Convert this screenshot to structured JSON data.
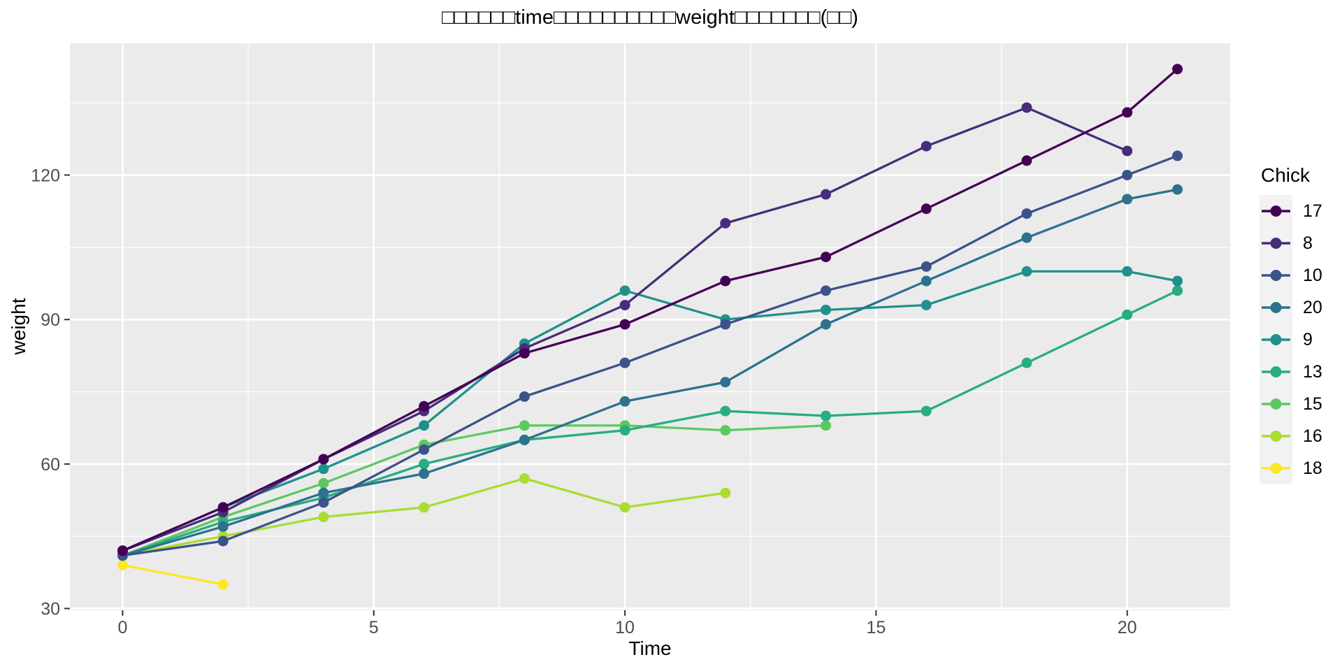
{
  "title": "□□□□□□time□□□□□□□□□□weight□□□□□□□(□□)",
  "x_axis": {
    "label": "Time"
  },
  "y_axis": {
    "label": "weight"
  },
  "legend": {
    "title": "Chick",
    "entries": [
      "17",
      "8",
      "10",
      "20",
      "9",
      "13",
      "15",
      "16",
      "18"
    ]
  },
  "style": {
    "panel_bg": "#EBEBEB",
    "grid_color": "#FFFFFF",
    "tick_color": "#333333",
    "tick_label_color": "#4D4D4D",
    "legend_key_bg": "#F2F2F2",
    "text_color": "#000000"
  },
  "chart_data": {
    "type": "line",
    "title": "□□□□□□time□□□□□□□□□□weight□□□□□□□(□□)",
    "xlabel": "Time",
    "ylabel": "weight",
    "legend_title": "Chick",
    "legend_position": "right",
    "grid": "white major and minor gridlines on gray panel",
    "x_ticks": [
      0,
      5,
      10,
      15,
      20
    ],
    "y_ticks": [
      30,
      60,
      90,
      120
    ],
    "x_minor": [
      2.5,
      7.5,
      12.5,
      17.5
    ],
    "y_minor": [
      45,
      75,
      105,
      135
    ],
    "xlim": [
      -1.05,
      22.05
    ],
    "ylim": [
      29.65,
      147.35
    ],
    "marker": "filled circle on every observation",
    "series": [
      {
        "name": "17",
        "color": "#440154",
        "x": [
          0,
          2,
          4,
          6,
          8,
          10,
          12,
          14,
          16,
          18,
          20,
          21
        ],
        "y": [
          42,
          51,
          61,
          72,
          83,
          89,
          98,
          103,
          113,
          123,
          133,
          142
        ]
      },
      {
        "name": "8",
        "color": "#472D7B",
        "x": [
          0,
          2,
          4,
          6,
          8,
          10,
          12,
          14,
          16,
          18,
          20
        ],
        "y": [
          42,
          50,
          61,
          71,
          84,
          93,
          110,
          116,
          126,
          134,
          125
        ]
      },
      {
        "name": "10",
        "color": "#3B528B",
        "x": [
          0,
          2,
          4,
          6,
          8,
          10,
          12,
          14,
          16,
          18,
          20,
          21
        ],
        "y": [
          41,
          44,
          52,
          63,
          74,
          81,
          89,
          96,
          101,
          112,
          120,
          124
        ]
      },
      {
        "name": "20",
        "color": "#2C728E",
        "x": [
          0,
          2,
          4,
          6,
          8,
          10,
          12,
          14,
          16,
          18,
          20,
          21
        ],
        "y": [
          41,
          47,
          54,
          58,
          65,
          73,
          77,
          89,
          98,
          107,
          115,
          117
        ]
      },
      {
        "name": "9",
        "color": "#21908C",
        "x": [
          0,
          2,
          4,
          6,
          8,
          10,
          12,
          14,
          16,
          18,
          20,
          21
        ],
        "y": [
          42,
          51,
          59,
          68,
          85,
          96,
          90,
          92,
          93,
          100,
          100,
          98
        ]
      },
      {
        "name": "13",
        "color": "#27AD81",
        "x": [
          0,
          2,
          4,
          6,
          8,
          10,
          12,
          14,
          16,
          18,
          20,
          21
        ],
        "y": [
          41,
          48,
          53,
          60,
          65,
          67,
          71,
          70,
          71,
          81,
          91,
          96
        ]
      },
      {
        "name": "15",
        "color": "#5DC863",
        "x": [
          0,
          2,
          4,
          6,
          8,
          10,
          12,
          14
        ],
        "y": [
          41,
          49,
          56,
          64,
          68,
          68,
          67,
          68
        ]
      },
      {
        "name": "16",
        "color": "#AADC32",
        "x": [
          0,
          2,
          4,
          6,
          8,
          10,
          12
        ],
        "y": [
          41,
          45,
          49,
          51,
          57,
          51,
          54
        ]
      },
      {
        "name": "18",
        "color": "#FDE725",
        "x": [
          0,
          2
        ],
        "y": [
          39,
          35
        ]
      }
    ],
    "draw_order": [
      "18",
      "16",
      "15",
      "13",
      "9",
      "20",
      "10",
      "8",
      "17"
    ]
  }
}
